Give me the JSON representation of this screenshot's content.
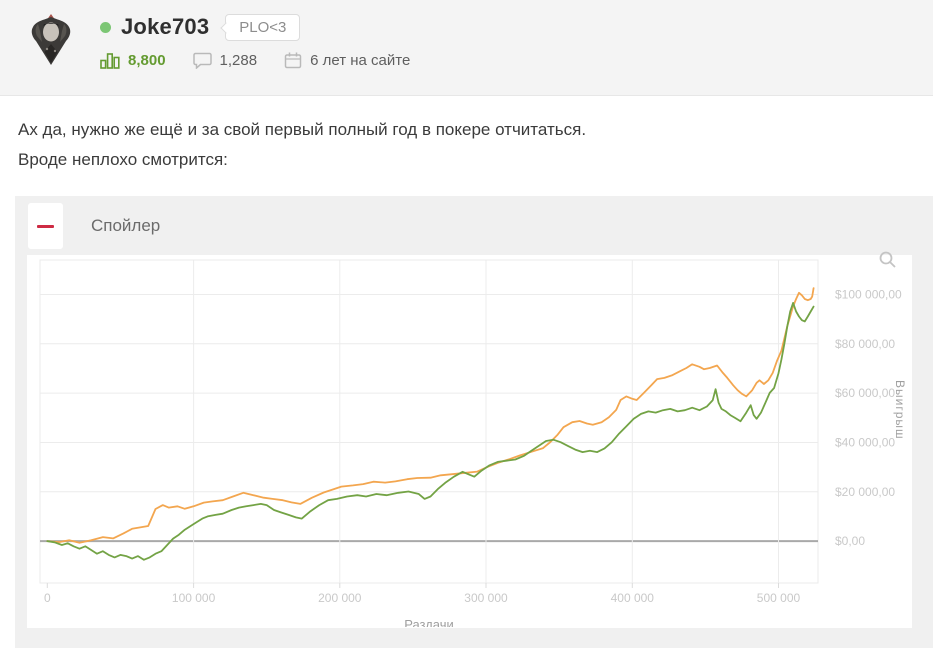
{
  "header": {
    "username": "Joke703",
    "online_status": "online",
    "badge": "PLO<3",
    "stats": [
      {
        "icon": "reputation-bars-icon",
        "value": "8,800"
      },
      {
        "icon": "comments-icon",
        "value": "1,288"
      },
      {
        "icon": "calendar-icon",
        "value": "6 лет на сайте"
      }
    ]
  },
  "post": {
    "line1": "Ах да, нужно же ещё и за свой первый полный год в покере отчитаться.",
    "line2": "Вроде неплохо смотрится:"
  },
  "spoiler": {
    "label": "Спойлер",
    "state": "expanded",
    "collapse_glyph": "−",
    "accent_color": "#ce2b44"
  },
  "icons": {
    "reputation-bars-icon": "bar-chart",
    "comments-icon": "speech-bubble",
    "calendar-icon": "calendar",
    "spoiler-collapse-icon": "minus",
    "chart-zoom-icon": "magnifier"
  },
  "chart_data": {
    "type": "line",
    "title": "",
    "xlabel": "Раздачи",
    "ylabel": "Выигрыш",
    "legend": "none",
    "grid": true,
    "xlim": [
      -5000,
      527000
    ],
    "ylim": [
      -17000,
      114000
    ],
    "x_ticks": [
      {
        "v": 0,
        "label": "0"
      },
      {
        "v": 100000,
        "label": "100 000"
      },
      {
        "v": 200000,
        "label": "200 000"
      },
      {
        "v": 300000,
        "label": "300 000"
      },
      {
        "v": 400000,
        "label": "400 000"
      },
      {
        "v": 500000,
        "label": "500 000"
      }
    ],
    "y_ticks": [
      {
        "v": 0,
        "label": "$0,00"
      },
      {
        "v": 20000,
        "label": "$20 000,00"
      },
      {
        "v": 40000,
        "label": "$40 000,00"
      },
      {
        "v": 60000,
        "label": "$60 000,00"
      },
      {
        "v": 80000,
        "label": "$80 000,00"
      },
      {
        "v": 100000,
        "label": "$100 000,00"
      }
    ],
    "zero_line_color": "#a9a9a9",
    "series": [
      {
        "name": "orange-line",
        "color": "#f3a64f",
        "points": [
          [
            0,
            0
          ],
          [
            8000,
            -400
          ],
          [
            15000,
            300
          ],
          [
            22000,
            -700
          ],
          [
            30000,
            300
          ],
          [
            38000,
            1600
          ],
          [
            45000,
            1100
          ],
          [
            52000,
            3100
          ],
          [
            58000,
            5000
          ],
          [
            64000,
            5600
          ],
          [
            69000,
            6100
          ],
          [
            74000,
            13000
          ],
          [
            79000,
            14600
          ],
          [
            83000,
            13600
          ],
          [
            89000,
            14100
          ],
          [
            94000,
            13100
          ],
          [
            100000,
            14100
          ],
          [
            107000,
            15600
          ],
          [
            113000,
            16100
          ],
          [
            120000,
            16600
          ],
          [
            127000,
            18100
          ],
          [
            134000,
            19600
          ],
          [
            141000,
            18600
          ],
          [
            148000,
            17600
          ],
          [
            154000,
            17100
          ],
          [
            161000,
            16600
          ],
          [
            167000,
            15700
          ],
          [
            173000,
            15100
          ],
          [
            181000,
            17600
          ],
          [
            189000,
            19700
          ],
          [
            196000,
            21100
          ],
          [
            201000,
            22100
          ],
          [
            209000,
            22600
          ],
          [
            216000,
            23100
          ],
          [
            223000,
            24100
          ],
          [
            231000,
            23700
          ],
          [
            238000,
            24200
          ],
          [
            246000,
            25100
          ],
          [
            253000,
            25600
          ],
          [
            262000,
            25700
          ],
          [
            269000,
            26700
          ],
          [
            276000,
            27100
          ],
          [
            286000,
            27700
          ],
          [
            294000,
            28200
          ],
          [
            301000,
            30100
          ],
          [
            308000,
            31700
          ],
          [
            316000,
            33200
          ],
          [
            323000,
            34700
          ],
          [
            331000,
            36200
          ],
          [
            339000,
            37700
          ],
          [
            344000,
            40200
          ],
          [
            349000,
            43200
          ],
          [
            353000,
            46200
          ],
          [
            359000,
            48200
          ],
          [
            364000,
            48700
          ],
          [
            369000,
            47700
          ],
          [
            373000,
            47200
          ],
          [
            379000,
            48200
          ],
          [
            384000,
            50200
          ],
          [
            389000,
            53200
          ],
          [
            392000,
            57200
          ],
          [
            396000,
            58700
          ],
          [
            400000,
            57700
          ],
          [
            403000,
            57200
          ],
          [
            408000,
            60200
          ],
          [
            413000,
            63200
          ],
          [
            417000,
            65700
          ],
          [
            422000,
            66200
          ],
          [
            427000,
            67200
          ],
          [
            432000,
            68700
          ],
          [
            437000,
            70200
          ],
          [
            441000,
            71700
          ],
          [
            446000,
            70700
          ],
          [
            449000,
            69700
          ],
          [
            453000,
            70200
          ],
          [
            458000,
            71200
          ],
          [
            462000,
            68200
          ],
          [
            465000,
            66200
          ],
          [
            469000,
            63200
          ],
          [
            472000,
            61200
          ],
          [
            475000,
            59700
          ],
          [
            478000,
            58700
          ],
          [
            482000,
            61200
          ],
          [
            485000,
            64200
          ],
          [
            487000,
            65200
          ],
          [
            490000,
            63700
          ],
          [
            493000,
            65200
          ],
          [
            496000,
            68200
          ],
          [
            499000,
            73200
          ],
          [
            502000,
            77200
          ],
          [
            504000,
            82200
          ],
          [
            506000,
            87200
          ],
          [
            508000,
            91200
          ],
          [
            510000,
            95200
          ],
          [
            512000,
            98200
          ],
          [
            514000,
            100700
          ],
          [
            516000,
            99700
          ],
          [
            518000,
            98200
          ],
          [
            520000,
            97700
          ],
          [
            522000,
            98200
          ],
          [
            523000,
            99200
          ],
          [
            524000,
            102600
          ]
        ]
      },
      {
        "name": "green-line",
        "color": "#73a345",
        "points": [
          [
            0,
            0
          ],
          [
            5000,
            -500
          ],
          [
            10000,
            -1600
          ],
          [
            14000,
            -900
          ],
          [
            18000,
            -2100
          ],
          [
            22000,
            -3100
          ],
          [
            26000,
            -2100
          ],
          [
            30000,
            -3600
          ],
          [
            34000,
            -5100
          ],
          [
            38000,
            -4100
          ],
          [
            42000,
            -5600
          ],
          [
            46000,
            -6600
          ],
          [
            50000,
            -5600
          ],
          [
            54000,
            -6100
          ],
          [
            58000,
            -7100
          ],
          [
            62000,
            -6100
          ],
          [
            66000,
            -7600
          ],
          [
            70000,
            -6600
          ],
          [
            74000,
            -5100
          ],
          [
            78000,
            -4100
          ],
          [
            82000,
            -1600
          ],
          [
            86000,
            1000
          ],
          [
            90000,
            2600
          ],
          [
            94000,
            4600
          ],
          [
            98000,
            6100
          ],
          [
            102000,
            7600
          ],
          [
            106000,
            9100
          ],
          [
            110000,
            10100
          ],
          [
            115000,
            10600
          ],
          [
            120000,
            11100
          ],
          [
            126000,
            12600
          ],
          [
            131000,
            13600
          ],
          [
            136000,
            14100
          ],
          [
            141000,
            14600
          ],
          [
            146000,
            15100
          ],
          [
            150000,
            14600
          ],
          [
            155000,
            12600
          ],
          [
            160000,
            11600
          ],
          [
            165000,
            10600
          ],
          [
            170000,
            9600
          ],
          [
            174000,
            9100
          ],
          [
            180000,
            12100
          ],
          [
            186000,
            14600
          ],
          [
            192000,
            16600
          ],
          [
            198000,
            17100
          ],
          [
            205000,
            18100
          ],
          [
            212000,
            18600
          ],
          [
            218000,
            18100
          ],
          [
            225000,
            19100
          ],
          [
            232000,
            18600
          ],
          [
            240000,
            19600
          ],
          [
            247000,
            20100
          ],
          [
            254000,
            19100
          ],
          [
            258000,
            17100
          ],
          [
            262000,
            18100
          ],
          [
            267000,
            21100
          ],
          [
            272000,
            23600
          ],
          [
            278000,
            26100
          ],
          [
            284000,
            28100
          ],
          [
            288000,
            27100
          ],
          [
            292000,
            26100
          ],
          [
            297000,
            28600
          ],
          [
            302000,
            30600
          ],
          [
            308000,
            32100
          ],
          [
            314000,
            32600
          ],
          [
            320000,
            33100
          ],
          [
            326000,
            34600
          ],
          [
            331000,
            36600
          ],
          [
            336000,
            38600
          ],
          [
            341000,
            40600
          ],
          [
            346000,
            41100
          ],
          [
            351000,
            40100
          ],
          [
            356000,
            38600
          ],
          [
            361000,
            37100
          ],
          [
            366000,
            36100
          ],
          [
            371000,
            36600
          ],
          [
            376000,
            36100
          ],
          [
            381000,
            37600
          ],
          [
            386000,
            40100
          ],
          [
            391000,
            43600
          ],
          [
            396000,
            46600
          ],
          [
            401000,
            49600
          ],
          [
            406000,
            51600
          ],
          [
            411000,
            52600
          ],
          [
            416000,
            52100
          ],
          [
            421000,
            53100
          ],
          [
            426000,
            53600
          ],
          [
            431000,
            52600
          ],
          [
            436000,
            53100
          ],
          [
            441000,
            54100
          ],
          [
            446000,
            53100
          ],
          [
            451000,
            54600
          ],
          [
            455000,
            57100
          ],
          [
            457000,
            61600
          ],
          [
            459000,
            56100
          ],
          [
            461000,
            53600
          ],
          [
            464000,
            52600
          ],
          [
            467000,
            51100
          ],
          [
            470000,
            50100
          ],
          [
            474000,
            48600
          ],
          [
            478000,
            52100
          ],
          [
            481000,
            55100
          ],
          [
            483000,
            51100
          ],
          [
            485000,
            49600
          ],
          [
            488000,
            52100
          ],
          [
            491000,
            56100
          ],
          [
            494000,
            60100
          ],
          [
            497000,
            62100
          ],
          [
            500000,
            68100
          ],
          [
            502000,
            73600
          ],
          [
            504000,
            80100
          ],
          [
            506000,
            87100
          ],
          [
            508000,
            93100
          ],
          [
            510000,
            96600
          ],
          [
            512000,
            93100
          ],
          [
            514000,
            91100
          ],
          [
            516000,
            89600
          ],
          [
            518000,
            89100
          ],
          [
            520000,
            91100
          ],
          [
            522000,
            93100
          ],
          [
            524000,
            95100
          ]
        ]
      }
    ]
  }
}
